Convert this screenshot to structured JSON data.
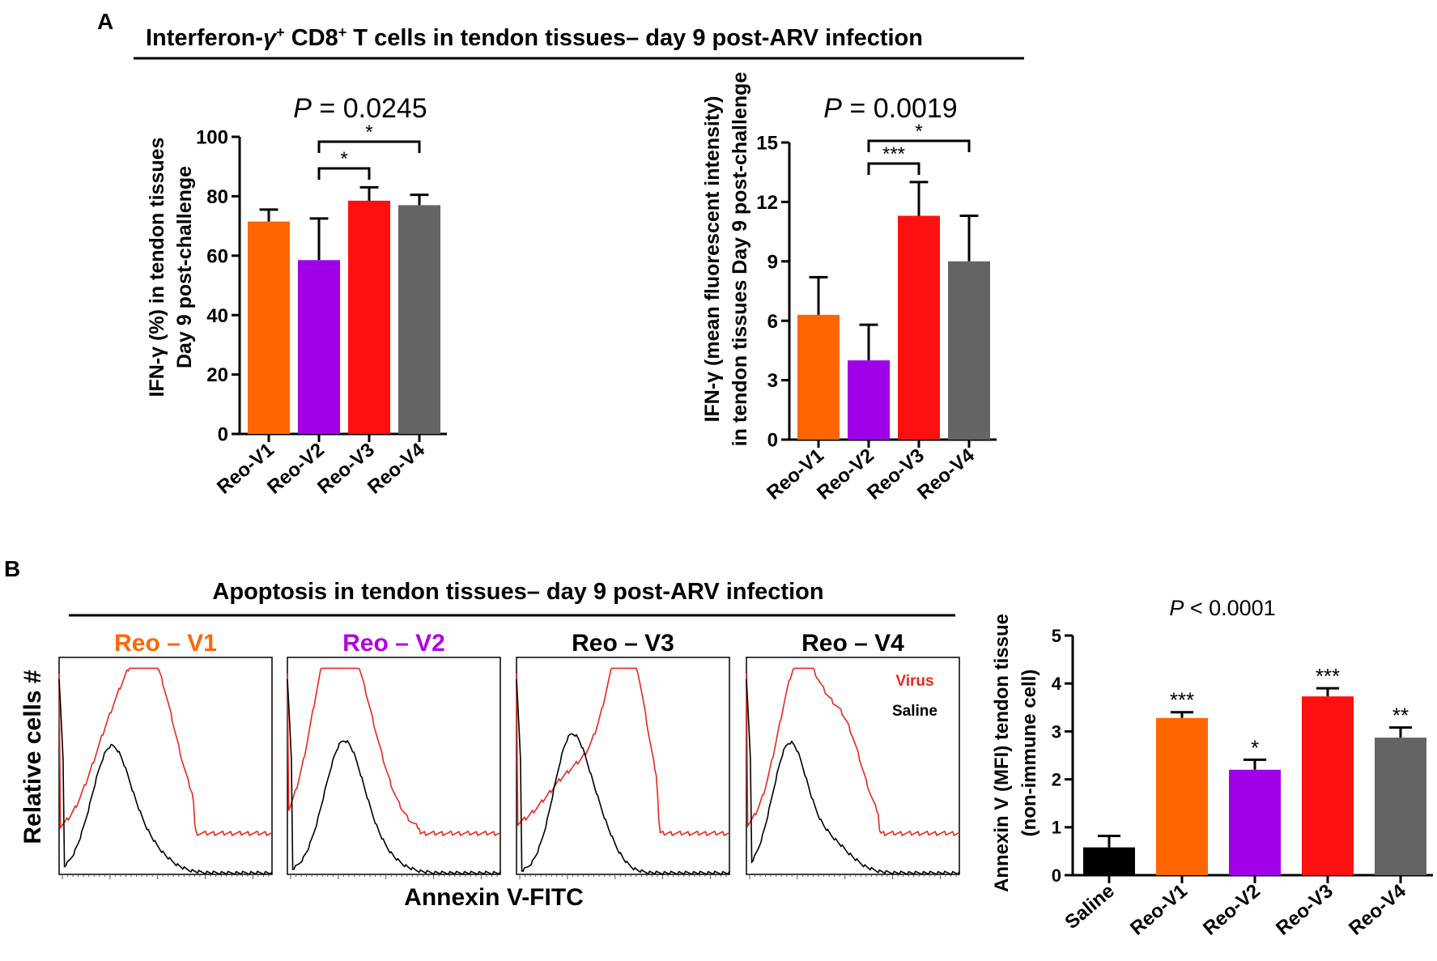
{
  "panel_a": {
    "label": "A",
    "title_pre": "Interferon-",
    "title_gamma": "γ",
    "title_sup1": "+",
    "title_mid": " CD8",
    "title_sup2": "+",
    "title_post": " T cells in tendon tissues– day 9 post-ARV infection"
  },
  "panel_b": {
    "label": "B",
    "title": "Apoptosis in tendon tissues– day 9 post-ARV infection",
    "histograms": {
      "y_label": "Relative cells #",
      "x_label": "Annexin V-FITC",
      "legend_virus": "Virus",
      "legend_saline": "Saline",
      "panels": [
        {
          "title": "Reo – V1",
          "color": "#ff6600"
        },
        {
          "title": "Reo – V2",
          "color": "#b000e0"
        },
        {
          "title": "Reo – V3",
          "color": "#000000"
        },
        {
          "title": "Reo – V4",
          "color": "#000000"
        }
      ]
    }
  },
  "colors": {
    "saline": "#000000",
    "v1": "#ff6600",
    "v2": "#a000e8",
    "v3": "#ff1010",
    "v4": "#646464",
    "virus_line": "#e8281c",
    "saline_line": "#000000"
  },
  "chart_data": [
    {
      "type": "bar",
      "id": "a1",
      "p_label_italic": "P",
      "p_label_rest": " = 0.0245",
      "ylabel_line1": "IFN-γ (%) in tendon tissues",
      "ylabel_line2": "Day 9 post-challenge",
      "categories": [
        "Reo-V1",
        "Reo-V2",
        "Reo-V3",
        "Reo-V4"
      ],
      "values": [
        71.5,
        58.5,
        78.5,
        77
      ],
      "errors": [
        4,
        14,
        4.5,
        3.5
      ],
      "colors": [
        "#ff6600",
        "#a000e8",
        "#ff1010",
        "#646464"
      ],
      "ylim": [
        0,
        100
      ],
      "yticks": [
        0,
        20,
        40,
        60,
        80,
        100
      ],
      "brackets": [
        {
          "from": 1,
          "to": 2,
          "label": "*",
          "level": 1
        },
        {
          "from": 1,
          "to": 3,
          "label": "*",
          "level": 2
        }
      ]
    },
    {
      "type": "bar",
      "id": "a2",
      "p_label_italic": "P",
      "p_label_rest": " = 0.0019",
      "ylabel_line1": "IFN-γ (mean fluorescent intensity)",
      "ylabel_line2": "in tendon tissues Day 9 post-challenge",
      "categories": [
        "Reo-V1",
        "Reo-V2",
        "Reo-V3",
        "Reo-V4"
      ],
      "values": [
        6.3,
        4.0,
        11.3,
        9.0
      ],
      "errors": [
        1.9,
        1.8,
        1.7,
        2.3
      ],
      "colors": [
        "#ff6600",
        "#a000e8",
        "#ff1010",
        "#646464"
      ],
      "ylim": [
        0,
        15
      ],
      "yticks": [
        0,
        3,
        6,
        9,
        12,
        15
      ],
      "brackets": [
        {
          "from": 1,
          "to": 2,
          "label": "***",
          "level": 1
        },
        {
          "from": 1,
          "to": 3,
          "label": "*",
          "level": 2
        }
      ]
    },
    {
      "type": "bar",
      "id": "b",
      "p_label_italic": "P",
      "p_label_rest": " < 0.0001",
      "ylabel_line1": "Annexin V (MFI) tendon tissue",
      "ylabel_line2": "(non-immune cell)",
      "categories": [
        "Saline",
        "Reo-V1",
        "Reo-V2",
        "Reo-V3",
        "Reo-V4"
      ],
      "values": [
        0.58,
        3.28,
        2.2,
        3.73,
        2.87
      ],
      "errors": [
        0.24,
        0.12,
        0.21,
        0.17,
        0.21
      ],
      "colors": [
        "#000000",
        "#ff6600",
        "#a000e8",
        "#ff1010",
        "#646464"
      ],
      "ylim": [
        0,
        5
      ],
      "yticks": [
        0,
        1,
        2,
        3,
        4,
        5
      ],
      "significance": [
        "",
        "***",
        "*",
        "***",
        "**"
      ]
    }
  ]
}
